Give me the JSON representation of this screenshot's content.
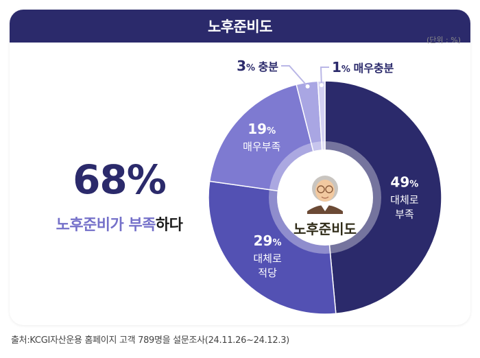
{
  "header": {
    "title": "노후준비도"
  },
  "unit_label": "(단위 : %)",
  "headline": {
    "value": "68%",
    "sub_a": "노후준비가 부족",
    "sub_b": "하다"
  },
  "center_label": "노후준비도",
  "source": "출처:KCGI자산운용 홈페이지 고객 789명을 설문조사(24.11.26~24.12.3)",
  "colors": {
    "header": "#2b2a6b",
    "accent": "#7470c9"
  },
  "chart_data": {
    "type": "pie",
    "title": "노후준비도",
    "unit": "%",
    "slices": [
      {
        "label": "대체로 부족",
        "value": 49,
        "color": "#2b2a6b"
      },
      {
        "label": "대체로 적당",
        "value": 29,
        "color": "#5351b3"
      },
      {
        "label": "매우부족",
        "value": 19,
        "color": "#7e7ad1"
      },
      {
        "label": "충분",
        "value": 3,
        "color": "#a9a6e3"
      },
      {
        "label": "매우충분",
        "value": 1,
        "color": "#d3d1f3"
      }
    ]
  }
}
